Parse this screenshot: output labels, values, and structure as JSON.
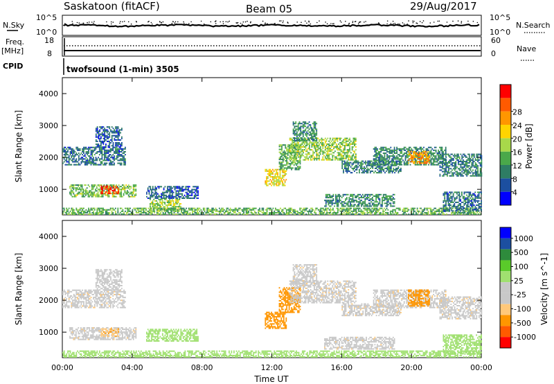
{
  "header": {
    "station": "Saskatoon (fitACF)",
    "beam": "Beam 05",
    "date": "29/Aug/2017"
  },
  "noise_panel": {
    "left_label": "N.Sky",
    "left_ticks": [
      "10^5",
      "10^0"
    ],
    "right_ticks": [
      "10^5",
      "10^0"
    ],
    "right_label": "N.Search"
  },
  "freq_panel": {
    "left_label_top": "Freq.",
    "left_label_unit": "[MHz]",
    "left_ticks": [
      "18",
      "8"
    ],
    "right_ticks": [
      "60",
      "0"
    ],
    "right_label": "Nave"
  },
  "cpid_panel": {
    "label": "CPID",
    "text": "twofsound (1-min) 3505"
  },
  "colors": {
    "power_scale": [
      "#0000ff",
      "#1c4fa0",
      "#2e7d64",
      "#4aa84a",
      "#a8d84a",
      "#ffd400",
      "#ff9600",
      "#ff5a00",
      "#ff0000"
    ],
    "velocity_scale": [
      "#ff0000",
      "#ff5a00",
      "#ff9600",
      "#ffc87a",
      "#c8c8c8",
      "#c8c8c8",
      "#a0e070",
      "#5acb2a",
      "#2e8b3c",
      "#1c4fa0",
      "#0000ff"
    ]
  },
  "chart_data": [
    {
      "type": "heatmap",
      "panel": "power",
      "ylabel": "Slant Range [km]",
      "y_ticks": [
        "1000",
        "2000",
        "3000",
        "4000"
      ],
      "ylim": [
        200,
        4500
      ],
      "x_ticks": [
        "00:00",
        "04:00",
        "08:00",
        "12:00",
        "16:00",
        "20:00",
        "00:00"
      ],
      "xlim_hours": [
        0,
        24
      ],
      "colorbar": {
        "label": "Power [dB]",
        "ticks": [
          "4",
          "8",
          "12",
          "16",
          "20",
          "24",
          "28"
        ],
        "range": [
          0,
          30
        ]
      },
      "regions": [
        {
          "t0": 0.0,
          "t1": 3.6,
          "r0": 1750,
          "r1": 2300,
          "level": 7
        },
        {
          "t0": 1.9,
          "t1": 3.4,
          "r0": 2300,
          "r1": 2950,
          "level": 6
        },
        {
          "t0": 0.4,
          "t1": 4.2,
          "r0": 750,
          "r1": 1150,
          "level": 13
        },
        {
          "t0": 2.2,
          "t1": 3.2,
          "r0": 850,
          "r1": 1100,
          "level": 26
        },
        {
          "t0": 4.8,
          "t1": 7.8,
          "r0": 700,
          "r1": 1100,
          "level": 6
        },
        {
          "t0": 5.0,
          "t1": 6.8,
          "r0": 300,
          "r1": 700,
          "level": 14
        },
        {
          "t0": 0.0,
          "t1": 24.0,
          "r0": 200,
          "r1": 420,
          "level": 12
        },
        {
          "t0": 11.6,
          "t1": 12.8,
          "r0": 1100,
          "r1": 1600,
          "level": 18
        },
        {
          "t0": 12.4,
          "t1": 13.6,
          "r0": 1600,
          "r1": 2400,
          "level": 12
        },
        {
          "t0": 13.0,
          "t1": 16.8,
          "r0": 1900,
          "r1": 2600,
          "level": 14
        },
        {
          "t0": 13.2,
          "t1": 14.6,
          "r0": 2500,
          "r1": 3100,
          "level": 9
        },
        {
          "t0": 16.0,
          "t1": 19.4,
          "r0": 1500,
          "r1": 1900,
          "level": 8
        },
        {
          "t0": 17.8,
          "t1": 22.0,
          "r0": 1750,
          "r1": 2300,
          "level": 9
        },
        {
          "t0": 19.8,
          "t1": 21.0,
          "r0": 1800,
          "r1": 2200,
          "level": 22
        },
        {
          "t0": 21.6,
          "t1": 24.0,
          "r0": 1400,
          "r1": 2100,
          "level": 8
        },
        {
          "t0": 15.0,
          "t1": 19.0,
          "r0": 450,
          "r1": 850,
          "level": 9
        },
        {
          "t0": 21.8,
          "t1": 24.0,
          "r0": 300,
          "r1": 900,
          "level": 7
        }
      ]
    },
    {
      "type": "heatmap",
      "panel": "velocity",
      "ylabel": "Slant Range [km]",
      "y_ticks": [
        "1000",
        "2000",
        "3000",
        "4000"
      ],
      "ylim": [
        200,
        4500
      ],
      "x_ticks": [
        "00:00",
        "04:00",
        "08:00",
        "12:00",
        "16:00",
        "20:00",
        "00:00"
      ],
      "xlim_hours": [
        0,
        24
      ],
      "xlabel": "Time UT",
      "colorbar": {
        "label": "Velocity [m s^-1]",
        "ticks": [
          "1000",
          "500",
          "100",
          "25",
          "-25",
          "-100",
          "-500",
          "-1000"
        ]
      },
      "regions": [
        {
          "t0": 0.0,
          "t1": 3.6,
          "r0": 1750,
          "r1": 2300,
          "vel": 0
        },
        {
          "t0": 1.9,
          "t1": 3.4,
          "r0": 2300,
          "r1": 2950,
          "vel": 60
        },
        {
          "t0": 0.4,
          "t1": 4.2,
          "r0": 750,
          "r1": 1150,
          "vel": 0
        },
        {
          "t0": 2.2,
          "t1": 3.2,
          "r0": 850,
          "r1": 1100,
          "vel": -80
        },
        {
          "t0": 4.8,
          "t1": 7.8,
          "r0": 700,
          "r1": 1100,
          "vel": 200
        },
        {
          "t0": 0.0,
          "t1": 24.0,
          "r0": 200,
          "r1": 420,
          "vel": 150
        },
        {
          "t0": 11.6,
          "t1": 12.8,
          "r0": 1100,
          "r1": 1600,
          "vel": -400
        },
        {
          "t0": 12.4,
          "t1": 13.6,
          "r0": 1600,
          "r1": 2400,
          "vel": -150
        },
        {
          "t0": 13.0,
          "t1": 16.8,
          "r0": 1900,
          "r1": 2600,
          "vel": 0
        },
        {
          "t0": 13.2,
          "t1": 14.6,
          "r0": 2500,
          "r1": 3100,
          "vel": 0
        },
        {
          "t0": 16.0,
          "t1": 19.4,
          "r0": 1500,
          "r1": 1900,
          "vel": 0
        },
        {
          "t0": 17.8,
          "t1": 22.0,
          "r0": 1750,
          "r1": 2300,
          "vel": 0
        },
        {
          "t0": 19.8,
          "t1": 21.0,
          "r0": 1800,
          "r1": 2300,
          "vel": -300
        },
        {
          "t0": 21.6,
          "t1": 24.0,
          "r0": 1400,
          "r1": 2100,
          "vel": 0
        },
        {
          "t0": 15.0,
          "t1": 19.0,
          "r0": 450,
          "r1": 850,
          "vel": 0
        },
        {
          "t0": 21.8,
          "t1": 24.0,
          "r0": 300,
          "r1": 900,
          "vel": 150
        }
      ]
    }
  ]
}
